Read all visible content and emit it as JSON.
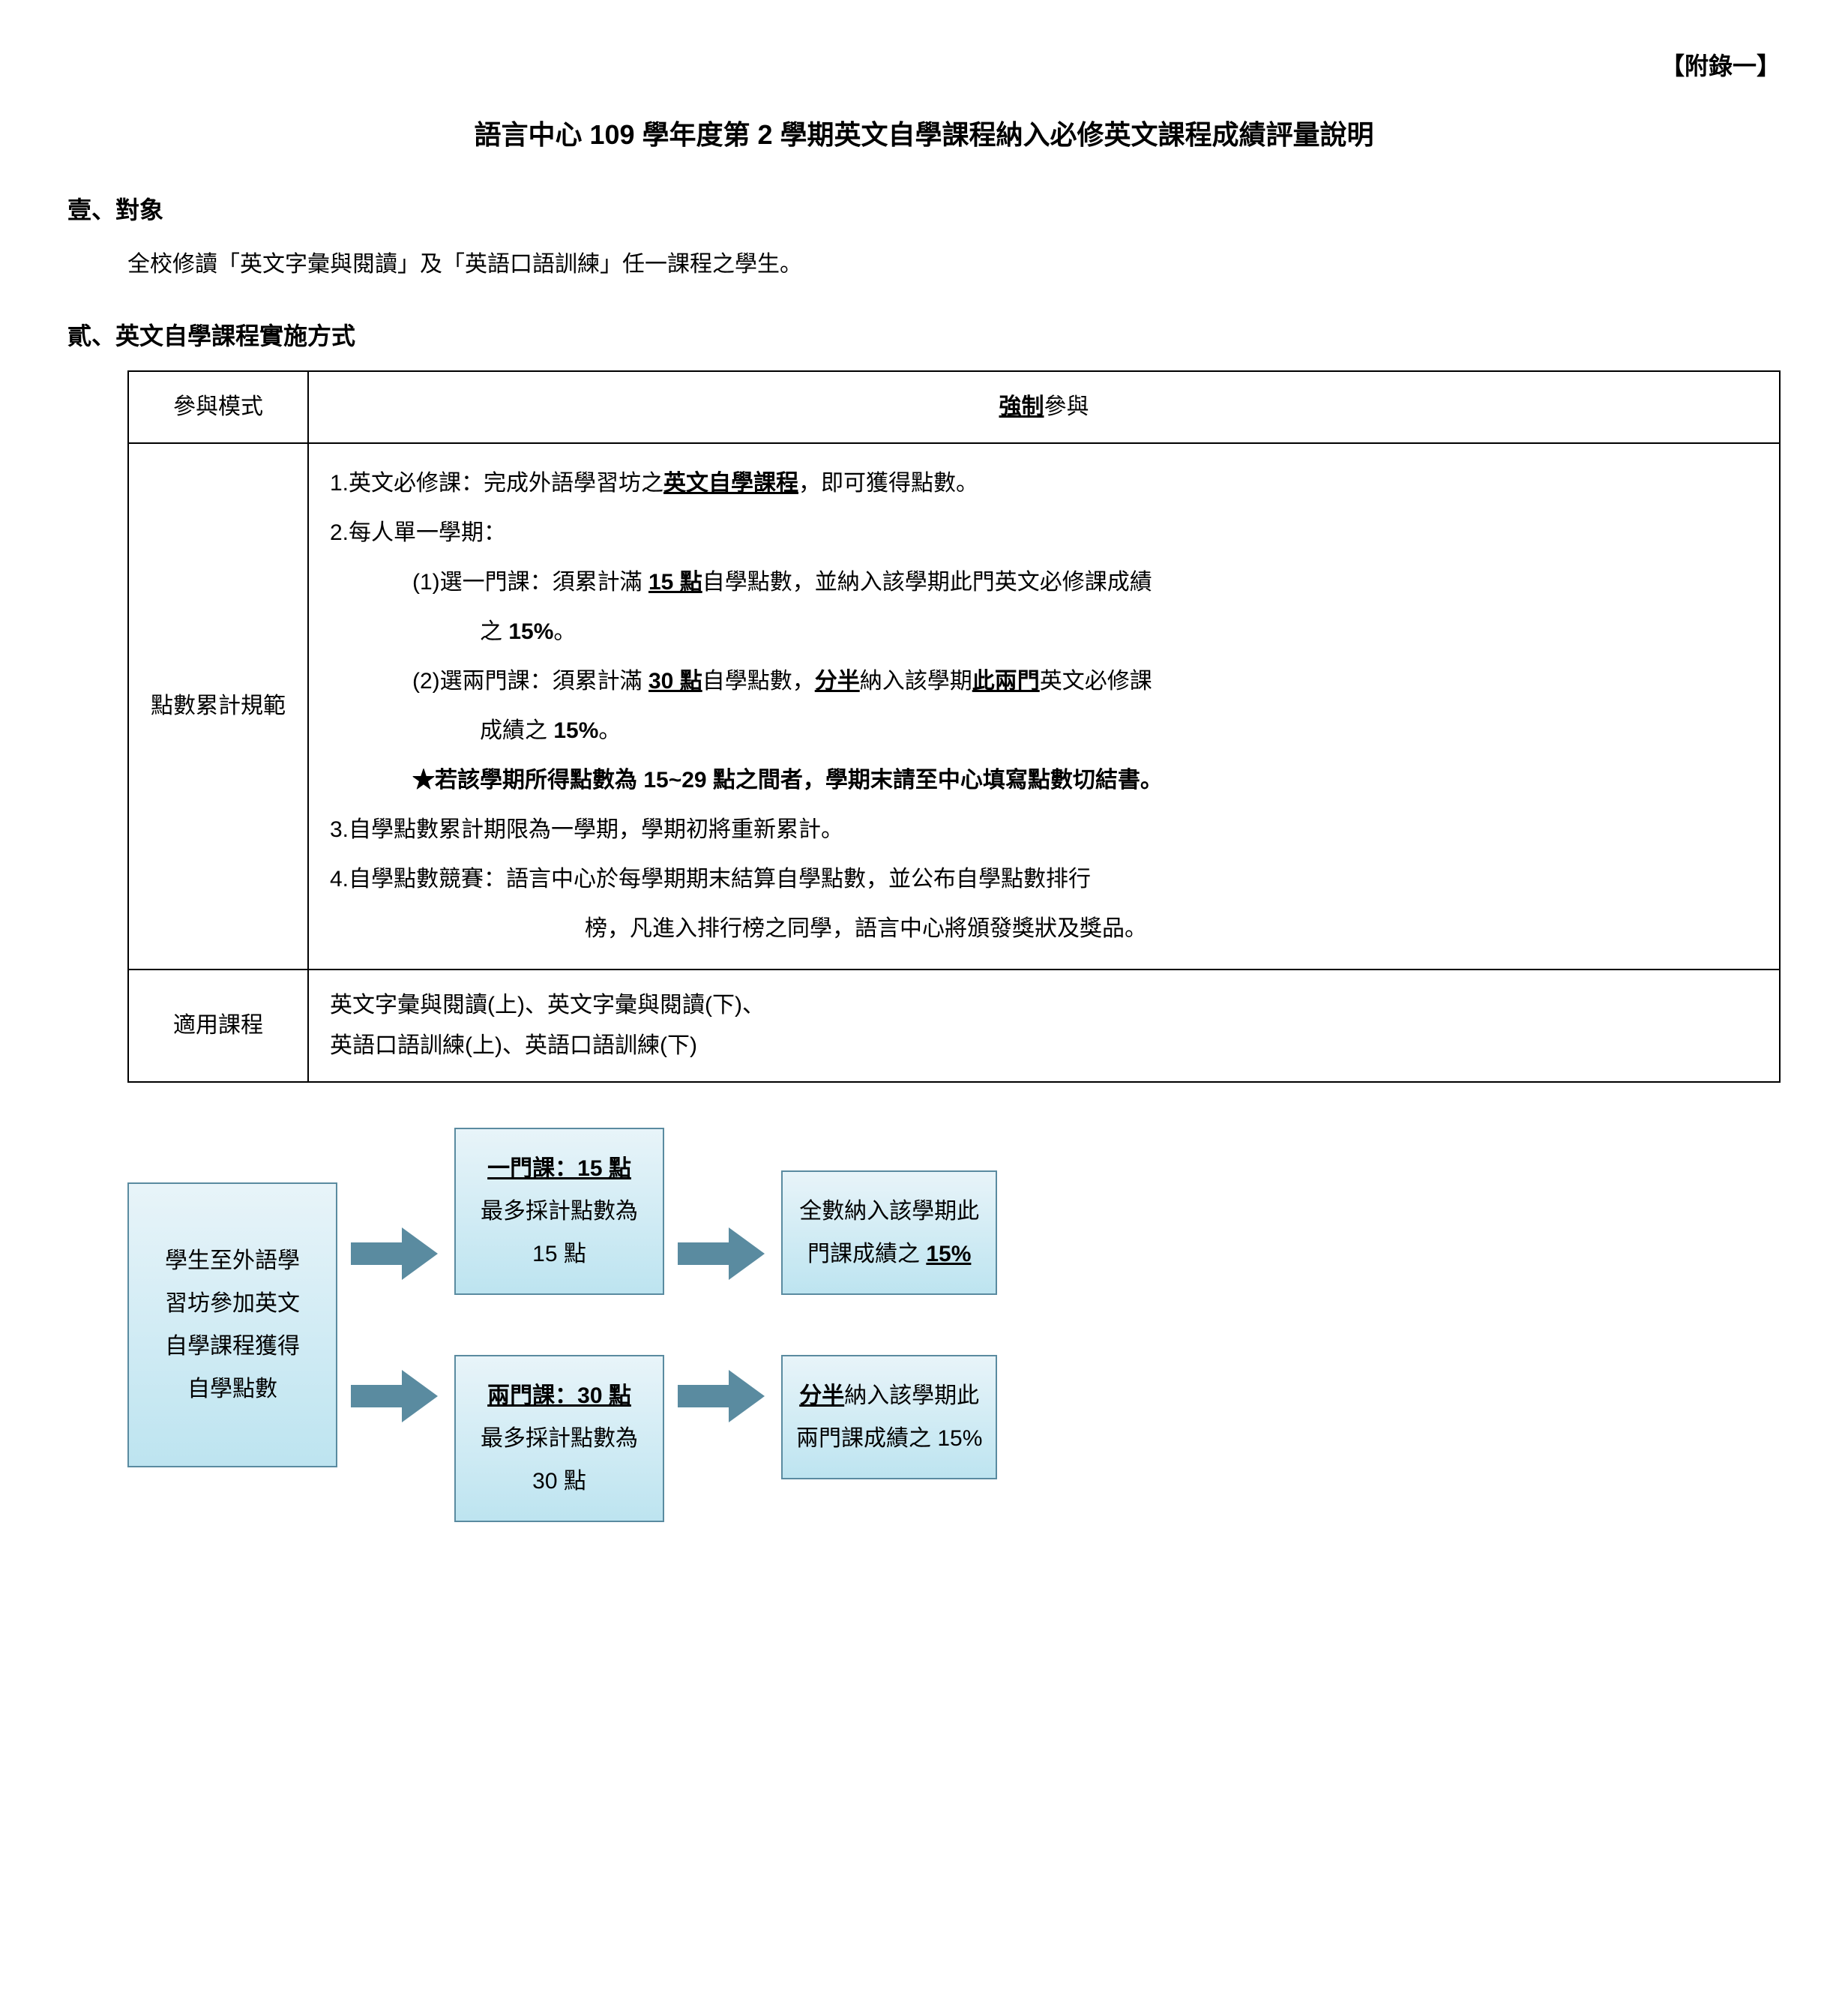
{
  "colors": {
    "text": "#000000",
    "border": "#000000",
    "flow_border": "#5a8ba0",
    "arrow_fill": "#5a8ba0",
    "box_grad_top": "#e8f4f9",
    "box_grad_bottom": "#bde4f0"
  },
  "appendix_label": "【附錄一】",
  "main_title": "語言中心 109 學年度第 2 學期英文自學課程納入必修英文課程成績評量說明",
  "section1": {
    "header": "壹、對象",
    "body": "全校修讀「英文字彙與閱讀」及「英語口語訓練」任一課程之學生。"
  },
  "section2": {
    "header": "貳、英文自學課程實施方式"
  },
  "table": {
    "rows": [
      {
        "label": "參與模式",
        "right_prefix": "",
        "right_underline": "強制",
        "right_suffix": "參與"
      }
    ],
    "rules_label": "點數累計規範",
    "rules": {
      "item1_prefix": "1.英文必修課：完成外語學習坊之",
      "item1_underline": "英文自學課程",
      "item1_suffix": "，即可獲得點數。",
      "item2": "2.每人單一學期：",
      "item2a_prefix": "(1)選一門課：須累計滿 ",
      "item2a_u1": "15 點",
      "item2a_mid": "自學點數，並納入該學期此門英文必修課成績",
      "item2a_cont_prefix": "之 ",
      "item2a_cont_bold": "15%",
      "item2a_cont_suffix": "。",
      "item2b_prefix": "(2)選兩門課：須累計滿 ",
      "item2b_u1": "30 點",
      "item2b_mid1": "自學點數，",
      "item2b_u2": "分半",
      "item2b_mid2": "納入該學期",
      "item2b_u3": "此兩門",
      "item2b_suffix": "英文必修課",
      "item2b_cont_prefix": "成績之 ",
      "item2b_cont_bold": "15%",
      "item2b_cont_suffix": "。",
      "star": "★若該學期所得點數為 15~29 點之間者，學期末請至中心填寫點數切結書。",
      "item3": "3.自學點數累計期限為一學期，學期初將重新累計。",
      "item4": "4.自學點數競賽：語言中心於每學期期末結算自學點數，並公布自學點數排行",
      "item4_cont": "榜，凡進入排行榜之同學，語言中心將頒發獎狀及獎品。"
    },
    "courses_label": "適用課程",
    "courses_line1": "英文字彙與閱讀(上)、英文字彙與閱讀(下)、",
    "courses_line2": "英語口語訓練(上)、英語口語訓練(下)"
  },
  "flow": {
    "start_l1": "學生至外語學",
    "start_l2": "習坊參加英文",
    "start_l3": "自學課程獲得",
    "start_l4": "自學點數",
    "top_mid_u": "一門課：15 點",
    "top_mid_l2": "最多採計點數為",
    "top_mid_l3": "15 點",
    "top_right_l1": "全數納入該學期此",
    "top_right_l2a": "門課成績之 ",
    "top_right_l2u": "15%",
    "bot_mid_u": "兩門課：30 點",
    "bot_mid_l2": "最多採計點數為",
    "bot_mid_l3": "30 點",
    "bot_right_l1u": "分半",
    "bot_right_l1b": "納入該學期此",
    "bot_right_l2": "兩門課成績之 15%"
  }
}
